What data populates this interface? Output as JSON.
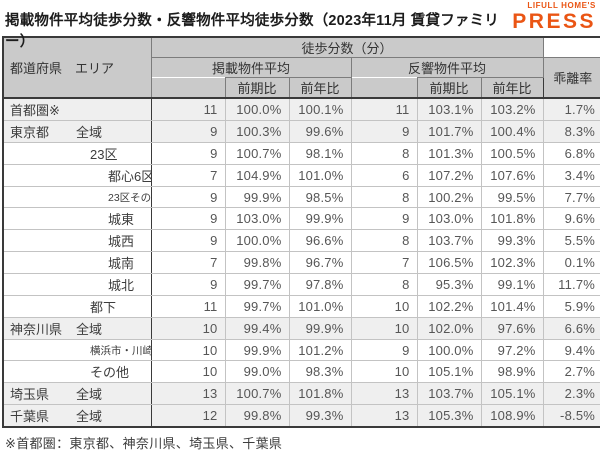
{
  "title": "掲載物件平均徒歩分数・反響物件平均徒歩分数（2023年11月 賃貸ファミリー）",
  "logo": {
    "top": "LIFULL HOME'S",
    "bottom": "PRESS",
    "color": "#EA5514"
  },
  "footnote": "※首都圏：東京都、神奈川県、埼玉県、千葉県",
  "chart_data": {
    "type": "table",
    "title": "掲載物件平均徒歩分数・反響物件平均徒歩分数（2023年11月 賃貸ファミリー）",
    "header": {
      "area": "都道府県　エリア",
      "walk_minutes": "徒歩分数（分）",
      "listed_avg": "掲載物件平均",
      "inquiry_avg": "反響物件平均",
      "prev_period": "前期比",
      "prev_year": "前年比",
      "divergence": "乖離率"
    },
    "column_keys": [
      "掲載物件平均(分)",
      "掲載前期比",
      "掲載前年比",
      "反響物件平均(分)",
      "反響前期比",
      "反響前年比",
      "乖離率"
    ],
    "rows": [
      {
        "pref": "首都圏※",
        "area": "",
        "level": 1,
        "small": false,
        "shaded": true,
        "group_start": true,
        "values": [
          "11",
          "100.0%",
          "100.1%",
          "11",
          "103.1%",
          "103.2%",
          "1.7%"
        ]
      },
      {
        "pref": "東京都",
        "area": "全域",
        "level": 1,
        "small": false,
        "shaded": true,
        "group_start": true,
        "values": [
          "9",
          "100.3%",
          "99.6%",
          "9",
          "101.7%",
          "100.4%",
          "8.3%"
        ]
      },
      {
        "pref": "",
        "area": "23区",
        "level": 2,
        "small": false,
        "shaded": false,
        "group_start": false,
        "values": [
          "9",
          "100.7%",
          "98.1%",
          "8",
          "101.3%",
          "100.5%",
          "6.8%"
        ]
      },
      {
        "pref": "",
        "area": "都心6区",
        "level": 3,
        "small": false,
        "shaded": false,
        "group_start": false,
        "values": [
          "7",
          "104.9%",
          "101.0%",
          "6",
          "107.2%",
          "107.6%",
          "3.4%"
        ]
      },
      {
        "pref": "",
        "area": "23区その他",
        "level": 3,
        "small": true,
        "shaded": false,
        "group_start": false,
        "values": [
          "9",
          "99.9%",
          "98.5%",
          "8",
          "100.2%",
          "99.5%",
          "7.7%"
        ]
      },
      {
        "pref": "",
        "area": "城東",
        "level": 3,
        "small": false,
        "shaded": false,
        "group_start": false,
        "values": [
          "9",
          "103.0%",
          "99.9%",
          "9",
          "103.0%",
          "101.8%",
          "9.6%"
        ]
      },
      {
        "pref": "",
        "area": "城西",
        "level": 3,
        "small": false,
        "shaded": false,
        "group_start": false,
        "values": [
          "9",
          "100.0%",
          "96.6%",
          "8",
          "103.7%",
          "99.3%",
          "5.5%"
        ]
      },
      {
        "pref": "",
        "area": "城南",
        "level": 3,
        "small": false,
        "shaded": false,
        "group_start": false,
        "values": [
          "7",
          "99.8%",
          "96.7%",
          "7",
          "106.5%",
          "102.3%",
          "0.1%"
        ]
      },
      {
        "pref": "",
        "area": "城北",
        "level": 3,
        "small": false,
        "shaded": false,
        "group_start": false,
        "values": [
          "9",
          "99.7%",
          "97.8%",
          "8",
          "95.3%",
          "99.1%",
          "11.7%"
        ]
      },
      {
        "pref": "",
        "area": "都下",
        "level": 2,
        "small": false,
        "shaded": false,
        "group_start": false,
        "values": [
          "11",
          "99.7%",
          "101.0%",
          "10",
          "102.2%",
          "101.4%",
          "5.9%"
        ]
      },
      {
        "pref": "神奈川県",
        "area": "全域",
        "level": 1,
        "small": false,
        "shaded": true,
        "group_start": true,
        "values": [
          "10",
          "99.4%",
          "99.9%",
          "10",
          "102.0%",
          "97.6%",
          "6.6%"
        ]
      },
      {
        "pref": "",
        "area": "横浜市・川崎市",
        "level": 2,
        "small": true,
        "shaded": false,
        "group_start": false,
        "values": [
          "10",
          "99.9%",
          "101.2%",
          "9",
          "100.0%",
          "97.2%",
          "9.4%"
        ]
      },
      {
        "pref": "",
        "area": "その他",
        "level": 2,
        "small": false,
        "shaded": false,
        "group_start": false,
        "values": [
          "10",
          "99.0%",
          "98.3%",
          "10",
          "105.1%",
          "98.9%",
          "2.7%"
        ]
      },
      {
        "pref": "埼玉県",
        "area": "全域",
        "level": 1,
        "small": false,
        "shaded": true,
        "group_start": true,
        "values": [
          "13",
          "100.7%",
          "101.8%",
          "13",
          "103.7%",
          "105.1%",
          "2.3%"
        ]
      },
      {
        "pref": "千葉県",
        "area": "全域",
        "level": 1,
        "small": false,
        "shaded": true,
        "group_start": true,
        "values": [
          "12",
          "99.8%",
          "99.3%",
          "13",
          "105.3%",
          "108.9%",
          "-8.5%"
        ]
      }
    ]
  }
}
